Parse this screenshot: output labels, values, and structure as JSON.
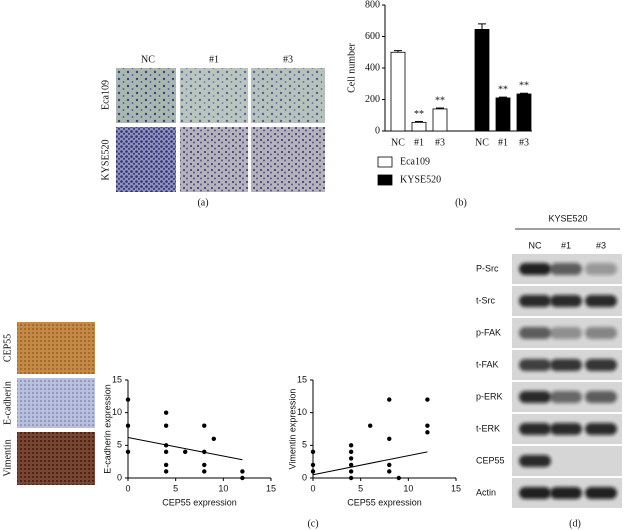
{
  "panel_labels": [
    "(a)",
    "(b)",
    "(c)",
    "(d)"
  ],
  "panel_a": {
    "columns": [
      "NC",
      "#1",
      "#3"
    ],
    "rows": [
      "Eca109",
      "KYSE520"
    ]
  },
  "panel_c_images": {
    "rows": [
      "CEP55",
      "E-cadherin",
      "Vimentin"
    ]
  },
  "panel_d": {
    "title": "KYSE520",
    "lanes": [
      "NC",
      "#1",
      "#3"
    ],
    "rows": [
      "P-Src",
      "t-Src",
      "p-FAK",
      "t-FAK",
      "p-ERK",
      "t-ERK",
      "CEP55",
      "Actin"
    ]
  },
  "chart_data": [
    {
      "type": "bar",
      "y_label": "Cell number",
      "categories": [
        "NC",
        "#1",
        "#3"
      ],
      "ylim": [
        0,
        800
      ],
      "yticks": [
        0,
        200,
        400,
        600,
        800
      ],
      "series": [
        {
          "name": "Eca109",
          "color": "#ffffff",
          "values": [
            500,
            55,
            140
          ],
          "errors": [
            10,
            5,
            6
          ],
          "significance": [
            null,
            "**",
            "**"
          ]
        },
        {
          "name": "KYSE520",
          "color": "#000000",
          "values": [
            645,
            210,
            235
          ],
          "errors": [
            35,
            5,
            5
          ],
          "significance": [
            null,
            "**",
            "**"
          ]
        }
      ]
    },
    {
      "type": "scatter",
      "x_label": "CEP55 expression",
      "y_label": "E-cadherin expression",
      "xlim": [
        0,
        15
      ],
      "ylim": [
        0,
        15
      ],
      "xticks": [
        0,
        5,
        10,
        15
      ],
      "yticks": [
        0,
        5,
        10,
        15
      ],
      "x": [
        0,
        0,
        0,
        4,
        4,
        4,
        4,
        4,
        4,
        6,
        8,
        8,
        8,
        8,
        9,
        12,
        12
      ],
      "y": [
        12,
        8,
        4,
        10,
        8,
        5,
        4,
        2,
        1,
        4,
        8,
        4,
        2,
        1,
        6,
        1,
        0
      ],
      "fit_line": {
        "x": [
          0,
          12
        ],
        "y": [
          6.2,
          2.8
        ]
      }
    },
    {
      "type": "scatter",
      "x_label": "CEP55 expression",
      "y_label": "Vimentin expression",
      "xlim": [
        0,
        15
      ],
      "ylim": [
        0,
        15
      ],
      "xticks": [
        0,
        5,
        10,
        15
      ],
      "yticks": [
        0,
        5,
        10,
        15
      ],
      "x": [
        0,
        0,
        0,
        4,
        4,
        4,
        4,
        4,
        4,
        6,
        8,
        8,
        8,
        8,
        9,
        12,
        12,
        12
      ],
      "y": [
        4,
        2,
        1,
        5,
        4,
        3,
        2,
        1,
        0,
        8,
        12,
        6,
        2,
        1,
        0,
        12,
        8,
        7
      ],
      "fit_line": {
        "x": [
          0,
          12
        ],
        "y": [
          0.5,
          4
        ]
      }
    }
  ]
}
